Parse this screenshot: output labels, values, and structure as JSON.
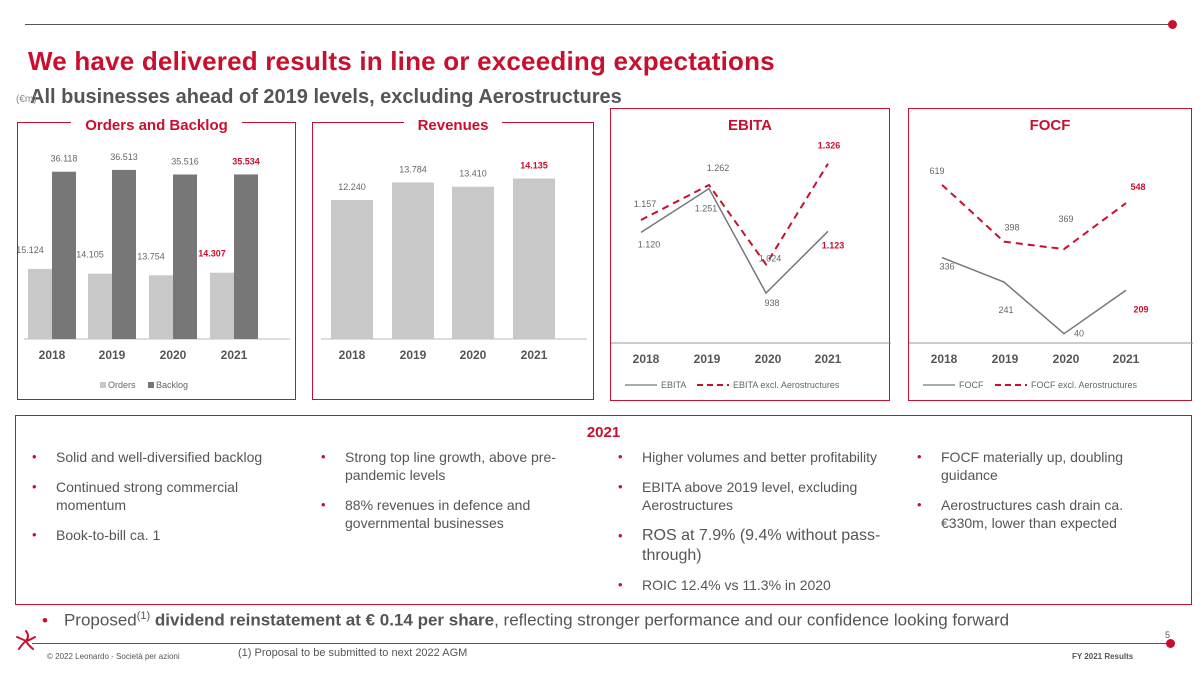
{
  "header": {
    "title": "We have delivered results in line or exceeding expectations",
    "subtitle": "All businesses ahead of 2019 levels, excluding Aerostructures",
    "unit": "(€m)"
  },
  "colors": {
    "accent": "#c8102e",
    "bar_light": "#c8c8c8",
    "bar_dark": "#777777",
    "text": "#555555"
  },
  "chart_data": [
    {
      "type": "bar",
      "title": "Orders and Backlog",
      "categories": [
        "2018",
        "2019",
        "2020",
        "2021"
      ],
      "series": [
        {
          "name": "Orders",
          "values": [
            15124,
            14105,
            13754,
            14307
          ],
          "labels": [
            "15.124",
            "14.105",
            "13.754",
            "14.307"
          ]
        },
        {
          "name": "Backlog",
          "values": [
            36118,
            36513,
            35516,
            35534
          ],
          "labels": [
            "36.118",
            "36.513",
            "35.516",
            "35.534"
          ]
        }
      ],
      "legend": [
        "Orders",
        "Backlog"
      ],
      "ylim": [
        0,
        38000
      ]
    },
    {
      "type": "bar",
      "title": "Revenues",
      "categories": [
        "2018",
        "2019",
        "2020",
        "2021"
      ],
      "values": [
        12240,
        13784,
        13410,
        14135
      ],
      "labels": [
        "12.240",
        "13.784",
        "13.410",
        "14.135"
      ],
      "ylim": [
        0,
        15500
      ]
    },
    {
      "type": "line",
      "title": "EBITA",
      "categories": [
        "2018",
        "2019",
        "2020",
        "2021"
      ],
      "series": [
        {
          "name": "EBITA",
          "values": [
            1120,
            1251,
            938,
            1123
          ],
          "labels": [
            "1.120",
            "1.251",
            "938",
            "1.123"
          ]
        },
        {
          "name": "EBITA excl. Aerostructures",
          "values": [
            1157,
            1262,
            1024,
            1326
          ],
          "labels": [
            "1.157",
            "1.262",
            "1.024",
            "1.326"
          ]
        }
      ],
      "ylim": [
        800,
        1400
      ]
    },
    {
      "type": "line",
      "title": "FOCF",
      "categories": [
        "2018",
        "2019",
        "2020",
        "2021"
      ],
      "series": [
        {
          "name": "FOCF",
          "values": [
            336,
            241,
            40,
            209
          ],
          "labels": [
            "336",
            "241",
            "40",
            "209"
          ]
        },
        {
          "name": "FOCF excl. Aerostructures",
          "values": [
            619,
            398,
            369,
            548
          ],
          "labels": [
            "619",
            "398",
            "369",
            "548"
          ]
        }
      ],
      "ylim": [
        0,
        700
      ]
    }
  ],
  "summary": {
    "title": "2021",
    "columns": [
      [
        "Solid and well-diversified backlog",
        "Continued strong commercial momentum",
        "Book-to-bill ca. 1"
      ],
      [
        "Strong top line growth, above pre-pandemic levels",
        "88% revenues in defence and governmental businesses"
      ],
      [
        "Higher volumes and better profitability",
        "EBITA above 2019 level, excluding Aerostructures",
        "ROS at 7.9% (9.4% without pass-through)",
        "ROIC 12.4% vs 11.3% in 2020"
      ],
      [
        "FOCF materially up, doubling guidance",
        "Aerostructures cash drain ca. €330m, lower than expected"
      ]
    ]
  },
  "dividend": {
    "prefix": "Proposed",
    "sup": "(1)",
    "bold": "dividend reinstatement at € 0.14 per share",
    "suffix": ", reflecting stronger performance and our confidence looking forward"
  },
  "footer": {
    "copyright": "© 2022 Leonardo - Società per azioni",
    "footnote": "(1) Proposal to be submitted to next 2022 AGM",
    "results": "FY 2021 Results",
    "page": "5"
  }
}
